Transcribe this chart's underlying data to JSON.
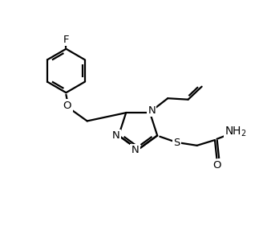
{
  "bg_color": "#ffffff",
  "line_color": "#000000",
  "line_width": 1.6,
  "font_size": 9.5,
  "figsize": [
    3.38,
    3.12
  ],
  "dpi": 100,
  "xlim": [
    0,
    10
  ],
  "ylim": [
    0,
    10
  ]
}
